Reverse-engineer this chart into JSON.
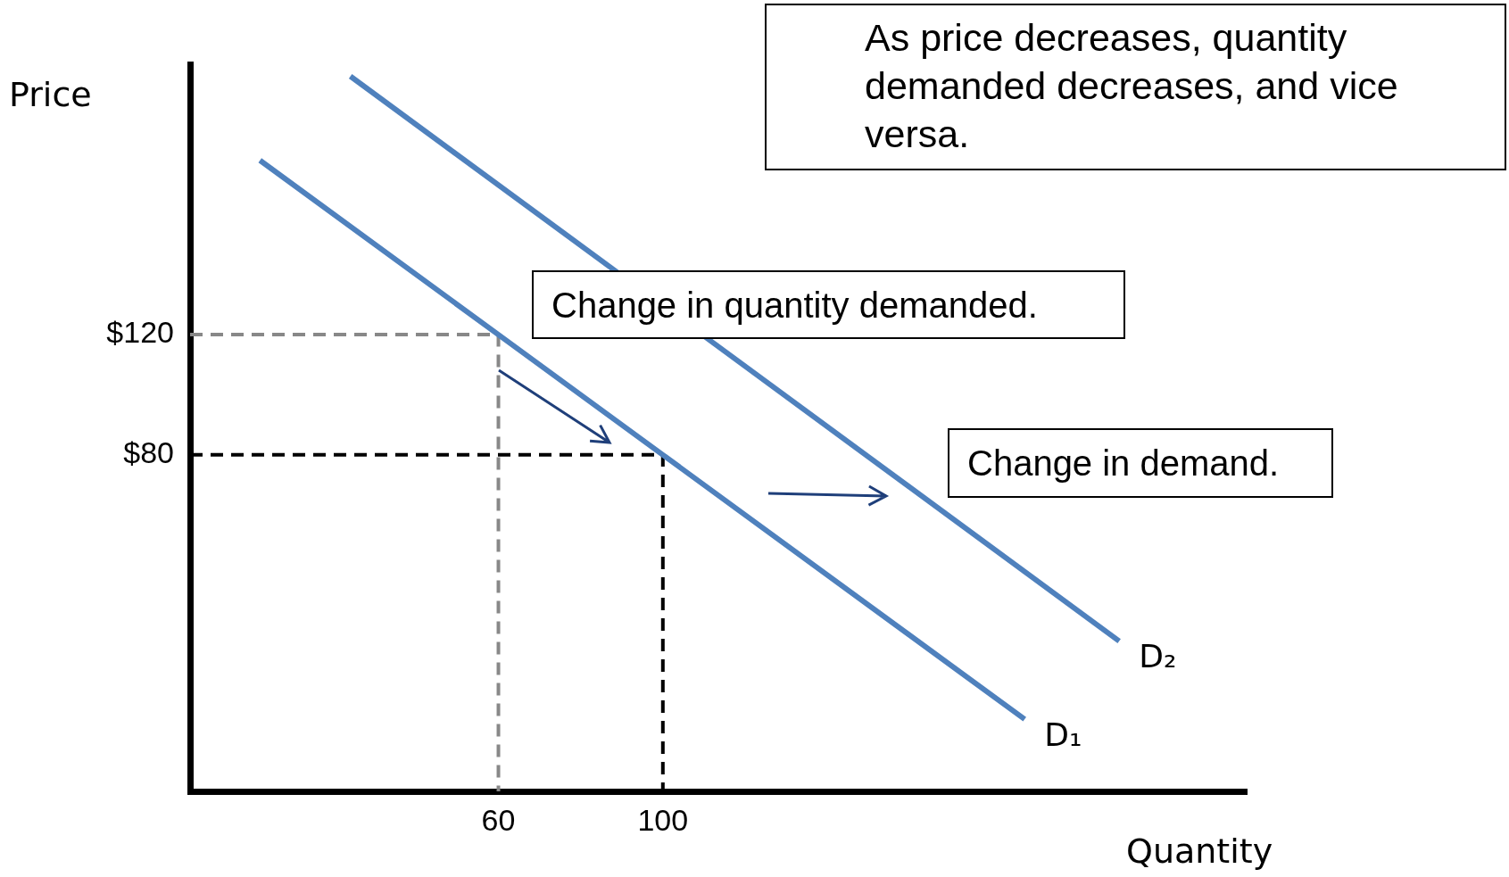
{
  "chart_data": {
    "type": "line",
    "xlabel": "Quantity",
    "ylabel": "Price",
    "xlim": [
      -15,
      242
    ],
    "ylim": [
      -32,
      210
    ],
    "xticks": [
      60,
      100
    ],
    "yticks": [
      {
        "value": 80,
        "label": "$80"
      },
      {
        "value": 120,
        "label": "$120"
      }
    ],
    "grid": false,
    "marker": "none",
    "line_style": "solid",
    "series": [
      {
        "name": "D₁",
        "color": "#4f81bd",
        "x": [
          2,
          60,
          100,
          188
        ],
        "values": [
          178,
          120,
          80,
          -8
        ]
      },
      {
        "name": "D₂",
        "color": "#4f81bd",
        "x": [
          24,
          211
        ],
        "values": [
          206,
          18
        ]
      },
      {
        "color": "#888888",
        "x": [
          -15,
          60,
          60
        ],
        "values": [
          120,
          120,
          -32
        ],
        "line_style": "dashed"
      },
      {
        "color": "#000000",
        "x": [
          -15,
          100,
          100
        ],
        "values": [
          80,
          80,
          -32
        ],
        "line_style": "dashed"
      }
    ],
    "annotations": [
      "As price decreases, quantity demanded decreases, and vice versa.",
      "Change in quantity demanded.",
      "Change in demand."
    ]
  }
}
